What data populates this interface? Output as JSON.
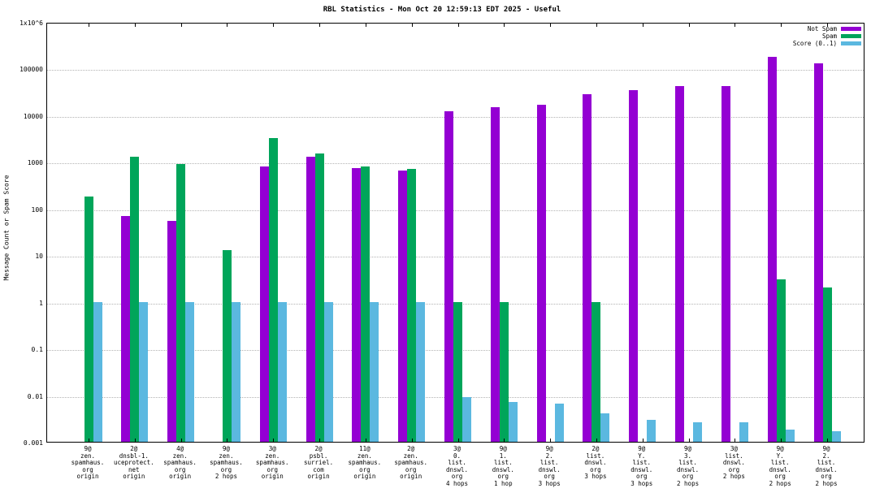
{
  "chart_data": {
    "type": "bar",
    "title": "RBL Statistics - Mon Oct 20 12:59:13 EDT 2025 - Useful",
    "ylabel": "Message Count or Spam Score",
    "xlabel": "",
    "yscale": "log",
    "ylim": [
      0.001,
      1000000
    ],
    "grid": "horizontal-dotted",
    "legend_position": "top-right",
    "ytick_labels": [
      "1x10^6",
      "100000",
      "10000",
      "1000",
      "100",
      "10",
      "1",
      "0.1",
      "0.01",
      "0.001"
    ],
    "categories": [
      [
        "9@",
        "zen.",
        "spamhaus.",
        "org",
        "origin"
      ],
      [
        "2@",
        "dnsbl-1.",
        "uceprotect.",
        "net",
        "origin"
      ],
      [
        "4@",
        "zen.",
        "spamhaus.",
        "org",
        "origin"
      ],
      [
        "9@",
        "zen.",
        "spamhaus.",
        "org",
        "2 hops"
      ],
      [
        "3@",
        "zen.",
        "spamhaus.",
        "org",
        "origin"
      ],
      [
        "2@",
        "psbl.",
        "surriel.",
        "com",
        "origin"
      ],
      [
        "11@",
        "zen.",
        "spamhaus.",
        "org",
        "origin"
      ],
      [
        "2@",
        "zen.",
        "spamhaus.",
        "org",
        "origin"
      ],
      [
        "3@",
        "0.",
        "list.",
        "dnswl.",
        "org",
        "4 hops"
      ],
      [
        "9@",
        "1.",
        "list.",
        "dnswl.",
        "org",
        "1 hop"
      ],
      [
        "9@",
        "2.",
        "list.",
        "dnswl.",
        "org",
        "3 hops"
      ],
      [
        "2@",
        "list.",
        "dnswl.",
        "org",
        "3 hops"
      ],
      [
        "9@",
        "Y.",
        "list.",
        "dnswl.",
        "org",
        "3 hops"
      ],
      [
        "9@",
        "3.",
        "list.",
        "dnswl.",
        "org",
        "2 hops"
      ],
      [
        "3@",
        "list.",
        "dnswl.",
        "org",
        "2 hops"
      ],
      [
        "9@",
        "Y.",
        "list.",
        "dnswl.",
        "org",
        "2 hops"
      ],
      [
        "9@",
        "2.",
        "list.",
        "dnswl.",
        "org",
        "2 hops"
      ]
    ],
    "series": [
      {
        "name": "Not Spam",
        "color": "#9400d3",
        "values": [
          null,
          70,
          55,
          null,
          800,
          1300,
          750,
          650,
          12000,
          15000,
          17000,
          28000,
          35000,
          43000,
          43000,
          175000,
          130000
        ]
      },
      {
        "name": "Spam",
        "color": "#00a55a",
        "values": [
          180,
          1300,
          900,
          13,
          3200,
          1500,
          800,
          700,
          1,
          1,
          null,
          1,
          null,
          null,
          null,
          3,
          2
        ]
      },
      {
        "name": "Score (0..1)",
        "color": "#5bb8e0",
        "values": [
          1,
          1,
          1,
          1,
          1,
          1,
          1,
          1,
          0.009,
          0.007,
          0.0065,
          0.004,
          0.003,
          0.0026,
          0.0026,
          0.0018,
          0.0017
        ]
      }
    ]
  }
}
